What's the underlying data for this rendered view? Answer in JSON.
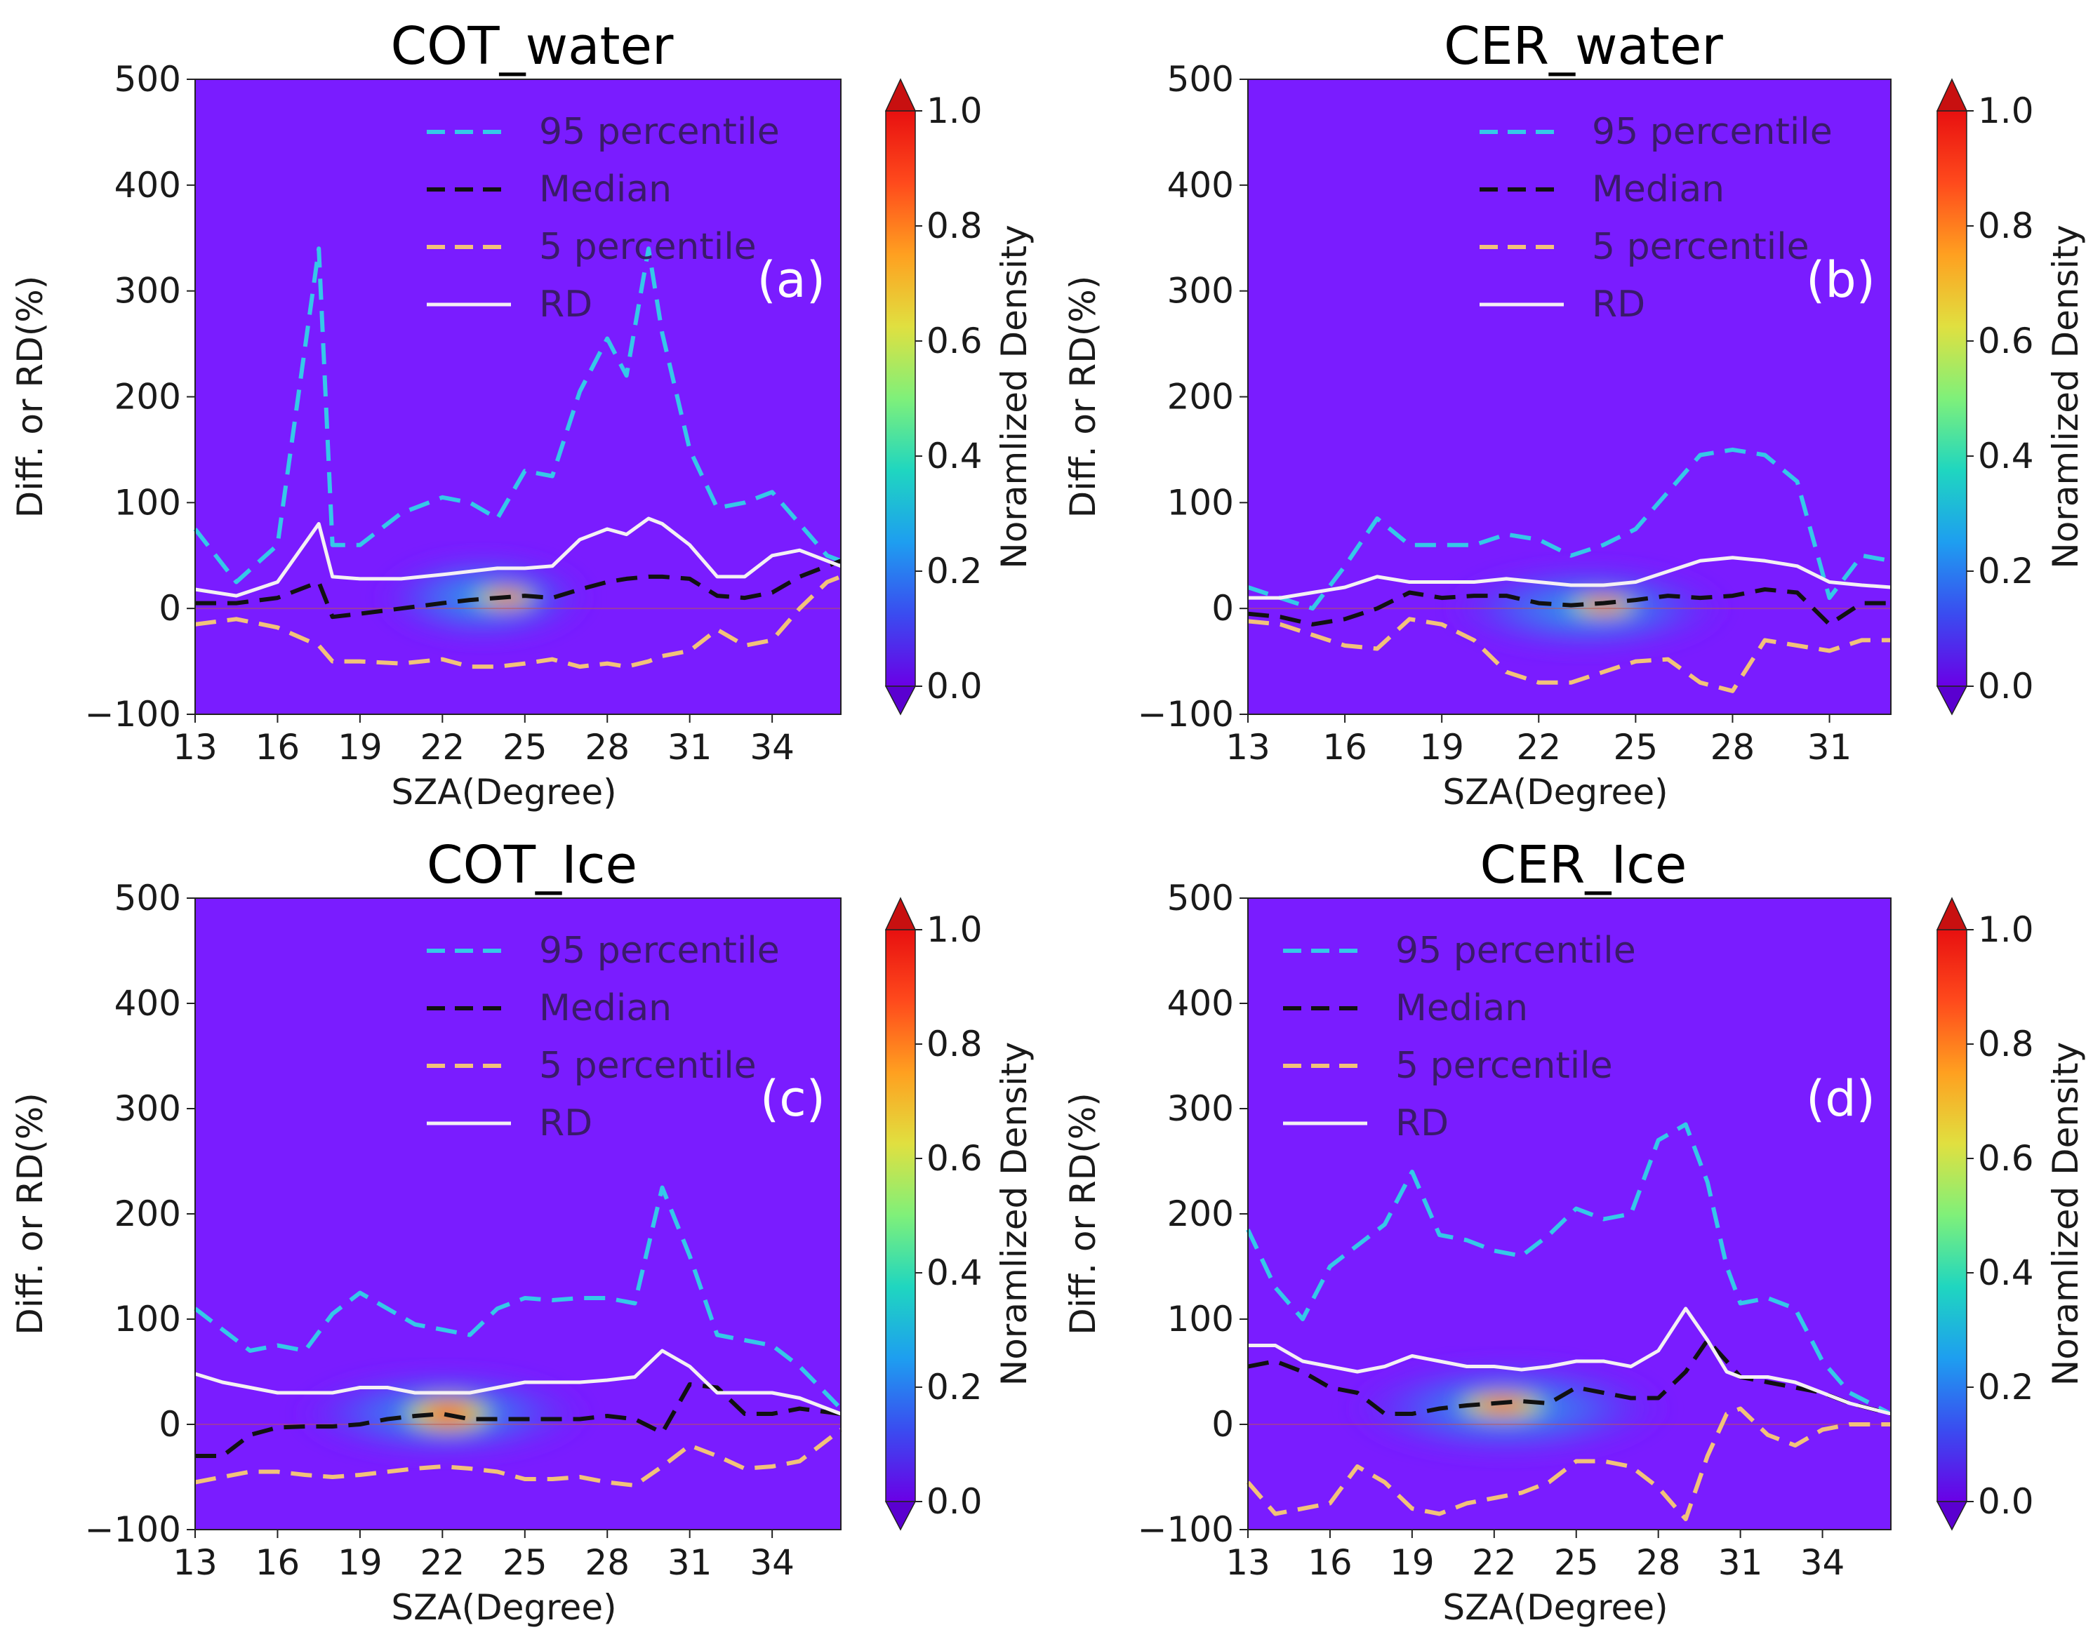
{
  "colors": {
    "background": "#7a1cff",
    "p95": "#35c8e8",
    "median": "#111111",
    "p5": "#f2c27a",
    "rd": "#f4f0f4",
    "text": "#1a1a1a"
  },
  "colorbar": {
    "label": "Noramlized Density",
    "ticks": [
      "0.0",
      "0.2",
      "0.4",
      "0.6",
      "0.8",
      "1.0"
    ],
    "stops": [
      "#6a00e6",
      "#3a4cf0",
      "#1e9ef0",
      "#1fd6c0",
      "#7ff07a",
      "#e0e040",
      "#ffa020",
      "#ff4a1c",
      "#e81010"
    ]
  },
  "chart_data": [
    {
      "type": "line",
      "panel_label": "(a)",
      "title": "COT_water",
      "xlabel": "SZA(Degree)",
      "ylabel": "Diff. or RD(%)",
      "xlim": [
        13,
        36.5
      ],
      "ylim": [
        -100,
        500
      ],
      "xticks": [
        13,
        16,
        19,
        22,
        25,
        28,
        31,
        34
      ],
      "yticks": [
        -100,
        0,
        100,
        200,
        300,
        400,
        500
      ],
      "legend_position": "top-right",
      "x": [
        13.0,
        14.5,
        16.0,
        17.5,
        18.0,
        19.0,
        20.5,
        22.0,
        23.0,
        24.0,
        25.0,
        26.0,
        27.0,
        28.0,
        28.7,
        29.5,
        30.0,
        31.0,
        32.0,
        33.0,
        34.0,
        35.0,
        36.0,
        36.5
      ],
      "series": [
        {
          "name": "95 percentile",
          "key": "p95",
          "values": [
            75,
            25,
            60,
            340,
            60,
            60,
            90,
            105,
            100,
            85,
            130,
            125,
            205,
            255,
            220,
            340,
            260,
            150,
            95,
            100,
            110,
            80,
            50,
            45
          ]
        },
        {
          "name": "Median",
          "key": "median",
          "values": [
            5,
            5,
            10,
            25,
            -8,
            -5,
            0,
            5,
            8,
            10,
            12,
            10,
            18,
            25,
            28,
            30,
            30,
            28,
            12,
            10,
            15,
            30,
            40,
            45
          ]
        },
        {
          "name": "5 percentile",
          "key": "p5",
          "values": [
            -15,
            -10,
            -18,
            -35,
            -50,
            -50,
            -52,
            -48,
            -55,
            -55,
            -52,
            -48,
            -55,
            -52,
            -55,
            -50,
            -45,
            -40,
            -20,
            -35,
            -30,
            0,
            25,
            30
          ]
        },
        {
          "name": "RD",
          "key": "rd",
          "values": [
            18,
            12,
            25,
            80,
            30,
            28,
            28,
            32,
            35,
            38,
            38,
            40,
            65,
            75,
            70,
            85,
            80,
            60,
            30,
            30,
            50,
            55,
            45,
            40
          ]
        }
      ],
      "hotspots": [
        {
          "x": 23.5,
          "y": 10,
          "rx": 4.0,
          "ry": 45,
          "intensity": 0.3
        },
        {
          "x": 24.3,
          "y": 10,
          "rx": 1.4,
          "ry": 12,
          "intensity": 1.0
        }
      ]
    },
    {
      "type": "line",
      "panel_label": "(b)",
      "title": "CER_water",
      "xlabel": "SZA(Degree)",
      "ylabel": "Diff. or RD(%)",
      "xlim": [
        13,
        32.9
      ],
      "ylim": [
        -100,
        500
      ],
      "xticks": [
        13,
        16,
        19,
        22,
        25,
        28,
        31
      ],
      "yticks": [
        -100,
        0,
        100,
        200,
        300,
        400,
        500
      ],
      "legend_position": "top-right",
      "x": [
        13.0,
        14.0,
        15.0,
        16.0,
        17.0,
        18.0,
        19.0,
        20.0,
        21.0,
        22.0,
        23.0,
        24.0,
        25.0,
        26.0,
        27.0,
        28.0,
        29.0,
        30.0,
        31.0,
        32.0,
        32.9
      ],
      "series": [
        {
          "name": "95 percentile",
          "key": "p95",
          "values": [
            20,
            10,
            0,
            40,
            85,
            60,
            60,
            60,
            70,
            65,
            50,
            60,
            75,
            110,
            145,
            150,
            145,
            120,
            10,
            50,
            45
          ]
        },
        {
          "name": "Median",
          "key": "median",
          "values": [
            -5,
            -8,
            -15,
            -10,
            0,
            15,
            10,
            12,
            12,
            5,
            3,
            5,
            8,
            12,
            10,
            12,
            18,
            15,
            -15,
            5,
            5
          ]
        },
        {
          "name": "5 percentile",
          "key": "p5",
          "values": [
            -12,
            -15,
            -25,
            -35,
            -38,
            -10,
            -15,
            -30,
            -60,
            -70,
            -70,
            -60,
            -50,
            -48,
            -70,
            -78,
            -30,
            -35,
            -40,
            -30,
            -30
          ]
        },
        {
          "name": "RD",
          "key": "rd",
          "values": [
            10,
            10,
            15,
            20,
            30,
            25,
            25,
            25,
            28,
            25,
            22,
            22,
            25,
            35,
            45,
            48,
            45,
            40,
            25,
            22,
            20
          ]
        }
      ],
      "hotspots": [
        {
          "x": 23.5,
          "y": 0,
          "rx": 4.5,
          "ry": 45,
          "intensity": 0.32
        },
        {
          "x": 24.0,
          "y": 3,
          "rx": 1.3,
          "ry": 12,
          "intensity": 1.0
        }
      ]
    },
    {
      "type": "line",
      "panel_label": "(c)",
      "title": "COT_Ice",
      "xlabel": "SZA(Degree)",
      "ylabel": "Diff. or RD(%)",
      "xlim": [
        13,
        36.5
      ],
      "ylim": [
        -100,
        500
      ],
      "xticks": [
        13,
        16,
        19,
        22,
        25,
        28,
        31,
        34
      ],
      "yticks": [
        -100,
        0,
        100,
        200,
        300,
        400,
        500
      ],
      "legend_position": "top-right",
      "x": [
        13.0,
        14.0,
        15.0,
        16.0,
        17.0,
        18.0,
        19.0,
        20.0,
        21.0,
        22.0,
        23.0,
        24.0,
        25.0,
        26.0,
        27.0,
        28.0,
        29.0,
        30.0,
        31.0,
        32.0,
        33.0,
        34.0,
        35.0,
        36.5
      ],
      "series": [
        {
          "name": "95 percentile",
          "key": "p95",
          "values": [
            110,
            90,
            70,
            75,
            70,
            105,
            125,
            110,
            95,
            90,
            85,
            110,
            120,
            118,
            120,
            120,
            115,
            225,
            160,
            85,
            80,
            75,
            55,
            15
          ]
        },
        {
          "name": "Median",
          "key": "median",
          "values": [
            -30,
            -30,
            -10,
            -3,
            -2,
            -2,
            0,
            5,
            8,
            10,
            5,
            5,
            5,
            5,
            5,
            8,
            5,
            -8,
            38,
            35,
            10,
            10,
            15,
            10
          ]
        },
        {
          "name": "5 percentile",
          "key": "p5",
          "values": [
            -55,
            -50,
            -45,
            -45,
            -48,
            -50,
            -48,
            -45,
            -42,
            -40,
            -42,
            -45,
            -52,
            -52,
            -50,
            -55,
            -58,
            -40,
            -20,
            -30,
            -42,
            -40,
            -35,
            -5
          ]
        },
        {
          "name": "RD",
          "key": "rd",
          "values": [
            48,
            40,
            35,
            30,
            30,
            30,
            35,
            35,
            30,
            30,
            30,
            35,
            40,
            40,
            40,
            42,
            45,
            70,
            55,
            30,
            30,
            30,
            25,
            10
          ]
        }
      ],
      "hotspots": [
        {
          "x": 22.0,
          "y": 10,
          "rx": 5.5,
          "ry": 45,
          "intensity": 0.42
        },
        {
          "x": 22.2,
          "y": 10,
          "rx": 2.0,
          "ry": 22,
          "intensity": 1.0
        }
      ]
    },
    {
      "type": "line",
      "panel_label": "(d)",
      "title": "CER_Ice",
      "xlabel": "SZA(Degree)",
      "ylabel": "Diff. or RD(%)",
      "xlim": [
        13,
        36.5
      ],
      "ylim": [
        -100,
        500
      ],
      "xticks": [
        13,
        16,
        19,
        22,
        25,
        28,
        31,
        34
      ],
      "yticks": [
        -100,
        0,
        100,
        200,
        300,
        400,
        500
      ],
      "legend_position": "top-left",
      "x": [
        13.0,
        14.0,
        15.0,
        16.0,
        17.0,
        18.0,
        19.0,
        20.0,
        21.0,
        22.0,
        23.0,
        24.0,
        25.0,
        26.0,
        27.0,
        28.0,
        29.0,
        29.8,
        30.5,
        31.0,
        32.0,
        33.0,
        34.0,
        35.0,
        36.5
      ],
      "series": [
        {
          "name": "95 percentile",
          "key": "p95",
          "values": [
            185,
            130,
            100,
            150,
            170,
            190,
            240,
            180,
            175,
            165,
            160,
            180,
            205,
            195,
            200,
            270,
            285,
            230,
            150,
            115,
            120,
            110,
            60,
            30,
            10
          ]
        },
        {
          "name": "Median",
          "key": "median",
          "values": [
            55,
            60,
            50,
            35,
            30,
            10,
            10,
            15,
            18,
            20,
            22,
            20,
            35,
            30,
            25,
            25,
            50,
            80,
            60,
            45,
            40,
            35,
            30,
            20,
            10
          ]
        },
        {
          "name": "5 percentile",
          "key": "p5",
          "values": [
            -55,
            -85,
            -80,
            -75,
            -40,
            -55,
            -80,
            -85,
            -75,
            -70,
            -65,
            -55,
            -35,
            -35,
            -40,
            -60,
            -90,
            -30,
            10,
            15,
            -10,
            -20,
            -5,
            0,
            0
          ]
        },
        {
          "name": "RD",
          "key": "rd",
          "values": [
            75,
            75,
            60,
            55,
            50,
            55,
            65,
            60,
            55,
            55,
            52,
            55,
            60,
            60,
            55,
            70,
            110,
            80,
            50,
            45,
            45,
            40,
            30,
            20,
            10
          ]
        }
      ],
      "hotspots": [
        {
          "x": 22.5,
          "y": 15,
          "rx": 6.0,
          "ry": 50,
          "intensity": 0.4
        },
        {
          "x": 22.3,
          "y": 18,
          "rx": 2.0,
          "ry": 16,
          "intensity": 1.0
        }
      ]
    }
  ]
}
